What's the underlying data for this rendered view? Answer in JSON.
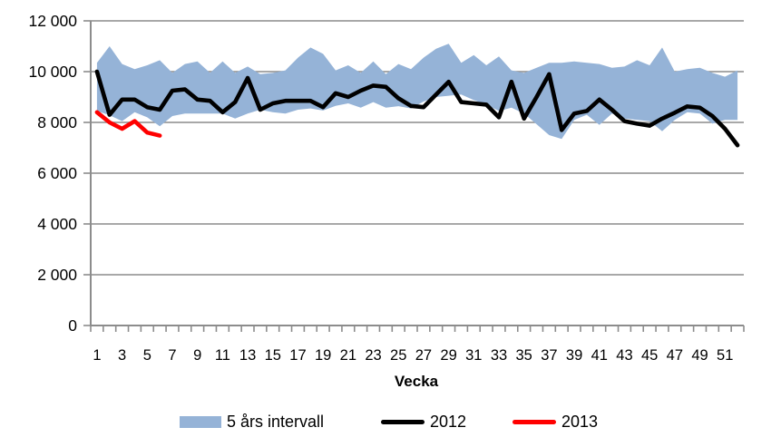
{
  "chart_data": {
    "type": "area+line",
    "title": "",
    "xlabel": "Vecka",
    "ylabel": "",
    "ylim": [
      0,
      12000
    ],
    "grid": true,
    "grid_color": "#8C8C8C",
    "axis_color": "#8C8C8C",
    "legend_position": "bottom",
    "y_ticks": [
      0,
      2000,
      4000,
      6000,
      8000,
      10000,
      12000
    ],
    "y_tick_labels": [
      "0",
      "2 000",
      "4 000",
      "6 000",
      "8 000",
      "10 000",
      "12 000"
    ],
    "x_tick_labels": [
      "1",
      "3",
      "5",
      "7",
      "9",
      "11",
      "13",
      "15",
      "17",
      "19",
      "21",
      "23",
      "25",
      "27",
      "29",
      "31",
      "33",
      "35",
      "37",
      "39",
      "41",
      "43",
      "45",
      "47",
      "49",
      "51"
    ],
    "categories": [
      1,
      2,
      3,
      4,
      5,
      6,
      7,
      8,
      9,
      10,
      11,
      12,
      13,
      14,
      15,
      16,
      17,
      18,
      19,
      20,
      21,
      22,
      23,
      24,
      25,
      26,
      27,
      28,
      29,
      30,
      31,
      32,
      33,
      34,
      35,
      36,
      37,
      38,
      39,
      40,
      41,
      42,
      43,
      44,
      45,
      46,
      47,
      48,
      49,
      50,
      51,
      52
    ],
    "band": {
      "name": "5 års intervall",
      "color": "#95B3D7",
      "upper": [
        10350,
        11000,
        10300,
        10100,
        10250,
        10450,
        9950,
        10300,
        10400,
        9950,
        10400,
        9950,
        10200,
        9900,
        9950,
        10050,
        10550,
        10950,
        10700,
        10050,
        10250,
        9950,
        10400,
        9900,
        10300,
        10100,
        10550,
        10900,
        11100,
        10350,
        10650,
        10250,
        10600,
        10050,
        9950,
        10150,
        10350,
        10350,
        10400,
        10350,
        10300,
        10150,
        10200,
        10450,
        10250,
        10950,
        10000,
        10100,
        10150,
        9950,
        9800,
        10050
      ],
      "lower": [
        8450,
        8280,
        8050,
        8400,
        8200,
        7850,
        8250,
        8350,
        8350,
        8350,
        8350,
        8150,
        8350,
        8500,
        8400,
        8350,
        8500,
        8550,
        8470,
        8650,
        8750,
        8580,
        8800,
        8580,
        8640,
        8550,
        8820,
        9000,
        9050,
        9100,
        8880,
        8700,
        8450,
        8580,
        8350,
        7930,
        7500,
        7350,
        8100,
        8300,
        7900,
        8350,
        8150,
        8100,
        8050,
        7650,
        8100,
        8400,
        8350,
        7950,
        8100,
        8100
      ]
    },
    "series": [
      {
        "name": "2012",
        "color": "#000000",
        "values": [
          10000,
          8300,
          8900,
          8900,
          8600,
          8500,
          9250,
          9300,
          8900,
          8850,
          8400,
          8800,
          9750,
          8500,
          8750,
          8850,
          8850,
          8850,
          8600,
          9150,
          9000,
          9250,
          9450,
          9400,
          8950,
          8650,
          8600,
          9100,
          9600,
          8800,
          8750,
          8700,
          8200,
          9600,
          8150,
          9000,
          9900,
          7700,
          8350,
          8450,
          8900,
          8500,
          8050,
          7950,
          7870,
          8150,
          8380,
          8630,
          8580,
          8250,
          7750,
          7100
        ]
      },
      {
        "name": "2013",
        "color": "#FF0000",
        "values": [
          8400,
          8000,
          7750,
          8050,
          7600,
          7480
        ]
      }
    ]
  }
}
